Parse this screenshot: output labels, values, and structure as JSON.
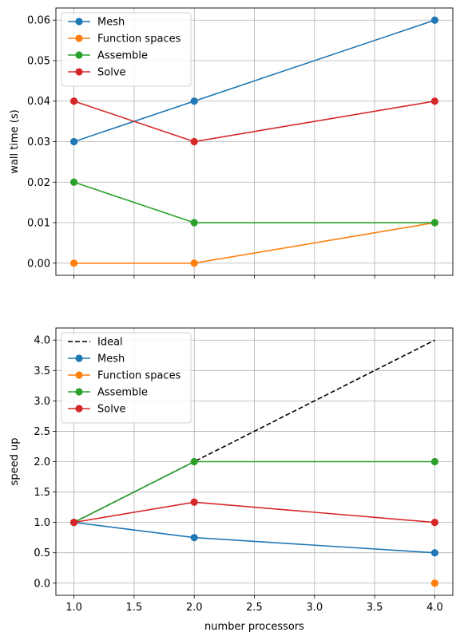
{
  "chart_data": [
    {
      "type": "line",
      "xlabel": "",
      "ylabel": "wall time (s)",
      "xlim": [
        0.85,
        4.15
      ],
      "ylim": [
        -0.003,
        0.063
      ],
      "yticks": [
        0.0,
        0.01,
        0.02,
        0.03,
        0.04,
        0.05,
        0.06
      ],
      "ytick_labels": [
        "0.00",
        "0.01",
        "0.02",
        "0.03",
        "0.04",
        "0.05",
        "0.06"
      ],
      "xticks": [
        1.0,
        1.5,
        2.0,
        2.5,
        3.0,
        3.5,
        4.0
      ],
      "show_xtick_labels": false,
      "grid": true,
      "legend": "top-left",
      "series": [
        {
          "name": "Mesh",
          "color": "#1f77b4",
          "marker": "circle",
          "x": [
            1,
            2,
            4
          ],
          "y": [
            0.03,
            0.04,
            0.06
          ]
        },
        {
          "name": "Function spaces",
          "color": "#ff7f0e",
          "marker": "circle",
          "x": [
            1,
            2,
            4
          ],
          "y": [
            0.0,
            0.0,
            0.01
          ]
        },
        {
          "name": "Assemble",
          "color": "#2ca02c",
          "marker": "circle",
          "x": [
            1,
            2,
            4
          ],
          "y": [
            0.02,
            0.01,
            0.01
          ]
        },
        {
          "name": "Solve",
          "color": "#d62728",
          "marker": "circle",
          "x": [
            1,
            2,
            4
          ],
          "y": [
            0.04,
            0.03,
            0.04
          ]
        }
      ]
    },
    {
      "type": "line",
      "xlabel": "number processors",
      "ylabel": "speed up",
      "xlim": [
        0.85,
        4.15
      ],
      "ylim": [
        -0.2,
        4.2
      ],
      "yticks": [
        0.0,
        0.5,
        1.0,
        1.5,
        2.0,
        2.5,
        3.0,
        3.5,
        4.0
      ],
      "ytick_labels": [
        "0.0",
        "0.5",
        "1.0",
        "1.5",
        "2.0",
        "2.5",
        "3.0",
        "3.5",
        "4.0"
      ],
      "xticks": [
        1.0,
        1.5,
        2.0,
        2.5,
        3.0,
        3.5,
        4.0
      ],
      "xtick_labels": [
        "1.0",
        "1.5",
        "2.0",
        "2.5",
        "3.0",
        "3.5",
        "4.0"
      ],
      "show_xtick_labels": true,
      "grid": true,
      "legend": "top-left",
      "series": [
        {
          "name": "Ideal",
          "color": "#000000",
          "marker": "none",
          "dashed": true,
          "x": [
            1,
            2,
            4
          ],
          "y": [
            1,
            2,
            4
          ]
        },
        {
          "name": "Mesh",
          "color": "#1f77b4",
          "marker": "circle",
          "x": [
            1,
            2,
            4
          ],
          "y": [
            1.0,
            0.75,
            0.5
          ]
        },
        {
          "name": "Function spaces",
          "color": "#ff7f0e",
          "marker": "circle",
          "x": [
            4
          ],
          "y": [
            0.0
          ]
        },
        {
          "name": "Assemble",
          "color": "#2ca02c",
          "marker": "circle",
          "x": [
            1,
            2,
            4
          ],
          "y": [
            1.0,
            2.0,
            2.0
          ]
        },
        {
          "name": "Solve",
          "color": "#d62728",
          "marker": "circle",
          "x": [
            1,
            2,
            4
          ],
          "y": [
            1.0,
            1.333,
            1.0
          ]
        }
      ]
    }
  ]
}
